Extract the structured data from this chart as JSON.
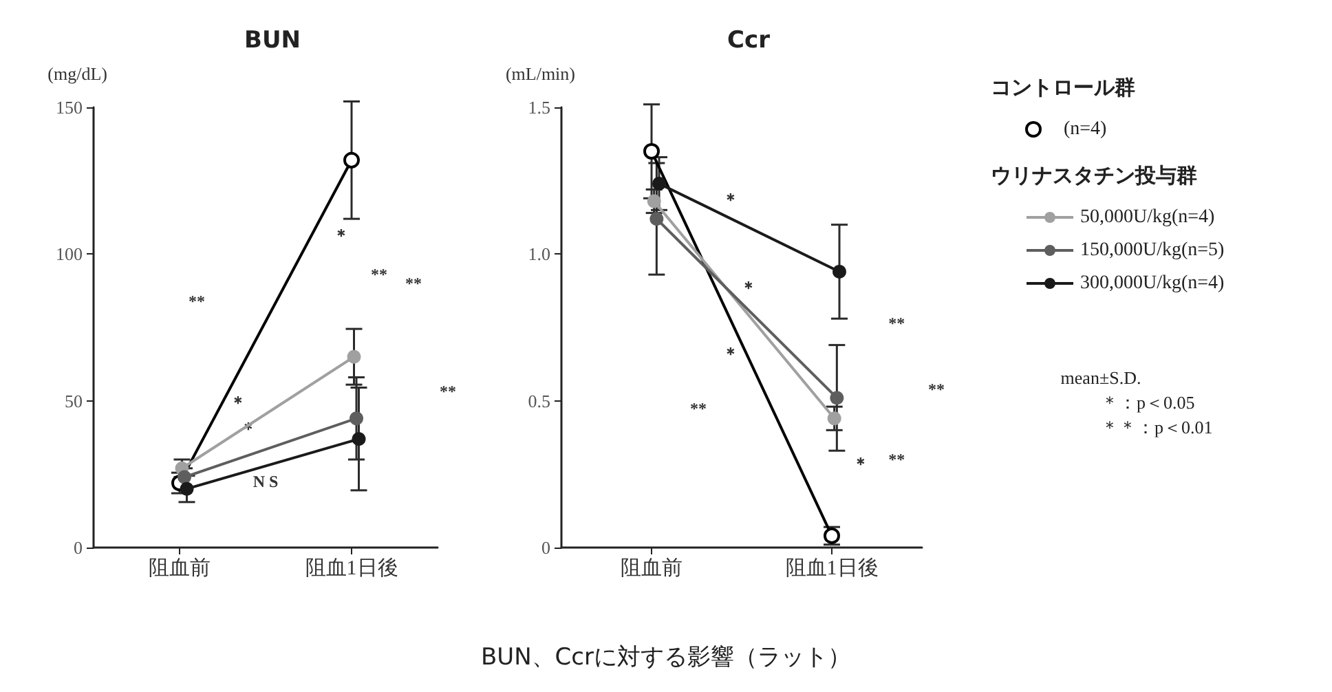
{
  "chart_data": [
    {
      "type": "line",
      "title": "BUN",
      "ylabel": "(mg/dL)",
      "categories": [
        "阻血前",
        "阻血1日後"
      ],
      "ylim": [
        0,
        150
      ],
      "yticks": [
        0,
        50,
        100,
        150
      ],
      "grid": false,
      "legend": false,
      "marker": "circle",
      "line_style": "solid",
      "series": [
        {
          "color": "#000000",
          "values": [
            22,
            132
          ],
          "errors": [
            3.5,
            20
          ]
        },
        {
          "color": "#a0a0a0",
          "values": [
            27,
            65
          ],
          "errors": [
            3,
            9.5
          ]
        },
        {
          "color": "#5e5e5e",
          "values": [
            24,
            44
          ],
          "errors": [
            3,
            14
          ]
        },
        {
          "color": "#1a1a1a",
          "values": [
            20,
            37
          ],
          "errors": [
            4.5,
            17.5
          ]
        }
      ],
      "annotations": [
        "**",
        "＊",
        "＊",
        "N S",
        "＊",
        "**",
        "**",
        "**"
      ]
    },
    {
      "type": "line",
      "title": "Ccr",
      "subtitle": "BUN、Ccrに対する影響（ラット）",
      "grid": false,
      "ylabel": "(mL/min)",
      "categories": [
        "阻血前",
        "阻血1日後"
      ],
      "ylim": [
        0,
        1.5
      ],
      "yticks": [
        0,
        0.5,
        {
          "value": 1,
          "label": "1.0"
        },
        1.5
      ],
      "legend": "right",
      "marker": "circle",
      "line_style": "solid",
      "series": [
        {
          "name": "(n=4)",
          "color": "#000000",
          "values": [
            1.35,
            0.04
          ],
          "errors": [
            0.16,
            0.03
          ]
        },
        {
          "name": "50,000U/kg(n=4)",
          "color": "#a0a0a0",
          "values": [
            1.18,
            0.44
          ],
          "errors": [
            0.04,
            0.04
          ]
        },
        {
          "name": "150,000U/kg(n=5)",
          "color": "#5e5e5e",
          "values": [
            1.12,
            0.51
          ],
          "errors": [
            0.19,
            0.18
          ]
        },
        {
          "name": "300,000U/kg(n=4)",
          "color": "#1a1a1a",
          "values": [
            1.24,
            0.94
          ],
          "errors": [
            0.09,
            0.16
          ]
        }
      ],
      "annotations": [
        "コントロール群",
        "ウリナスタチン投与群",
        "mean±S.D.",
        "＊：p＜0.05",
        "＊＊：p＜0.01",
        "＊",
        "＊",
        "＊",
        "**",
        "＊",
        "**",
        "**",
        "**"
      ]
    }
  ]
}
